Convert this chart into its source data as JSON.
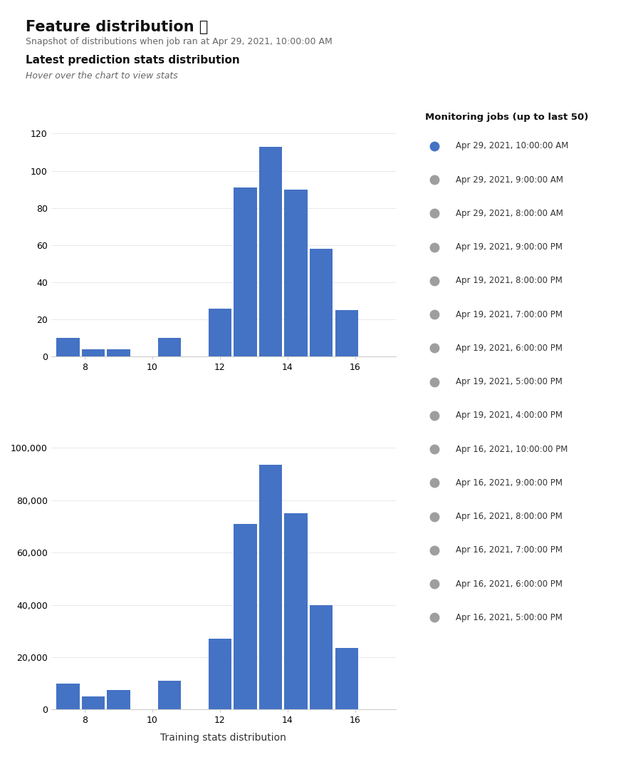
{
  "title": "Feature distribution ❓",
  "subtitle": "Snapshot of distributions when job ran at Apr 29, 2021, 10:00:00 AM",
  "section1_title": "Latest prediction stats distribution",
  "section1_subtitle": "Hover over the chart to view stats",
  "training_xlabel": "Training stats distribution",
  "bar_color": "#4472C4",
  "bg_color": "#ffffff",
  "hist1_x": [
    7.5,
    8.25,
    9.0,
    9.75,
    10.5,
    11.25,
    12.0,
    12.75,
    13.5,
    14.25,
    15.0,
    15.75,
    16.5
  ],
  "hist1_heights": [
    10,
    4,
    4,
    0,
    10,
    0,
    26,
    91,
    113,
    90,
    58,
    25,
    0
  ],
  "hist2_x": [
    7.5,
    8.25,
    9.0,
    9.75,
    10.5,
    11.25,
    12.0,
    12.75,
    13.5,
    14.25,
    15.0,
    15.75,
    16.5
  ],
  "hist2_heights": [
    10000,
    5000,
    7500,
    0,
    11000,
    0,
    27000,
    71000,
    93500,
    75000,
    40000,
    23500,
    0
  ],
  "legend_title": "Monitoring jobs (up to last 50)",
  "legend_entries": [
    {
      "label": "Apr 29, 2021, 10:00:00 AM",
      "color": "#4472C4"
    },
    {
      "label": "Apr 29, 2021, 9:00:00 AM",
      "color": "#9E9E9E"
    },
    {
      "label": "Apr 29, 2021, 8:00:00 AM",
      "color": "#9E9E9E"
    },
    {
      "label": "Apr 19, 2021, 9:00:00 PM",
      "color": "#9E9E9E"
    },
    {
      "label": "Apr 19, 2021, 8:00:00 PM",
      "color": "#9E9E9E"
    },
    {
      "label": "Apr 19, 2021, 7:00:00 PM",
      "color": "#9E9E9E"
    },
    {
      "label": "Apr 19, 2021, 6:00:00 PM",
      "color": "#9E9E9E"
    },
    {
      "label": "Apr 19, 2021, 5:00:00 PM",
      "color": "#9E9E9E"
    },
    {
      "label": "Apr 19, 2021, 4:00:00 PM",
      "color": "#9E9E9E"
    },
    {
      "label": "Apr 16, 2021, 10:00:00 PM",
      "color": "#9E9E9E"
    },
    {
      "label": "Apr 16, 2021, 9:00:00 PM",
      "color": "#9E9E9E"
    },
    {
      "label": "Apr 16, 2021, 8:00:00 PM",
      "color": "#9E9E9E"
    },
    {
      "label": "Apr 16, 2021, 7:00:00 PM",
      "color": "#9E9E9E"
    },
    {
      "label": "Apr 16, 2021, 6:00:00 PM",
      "color": "#9E9E9E"
    },
    {
      "label": "Apr 16, 2021, 5:00:00 PM",
      "color": "#9E9E9E"
    }
  ]
}
